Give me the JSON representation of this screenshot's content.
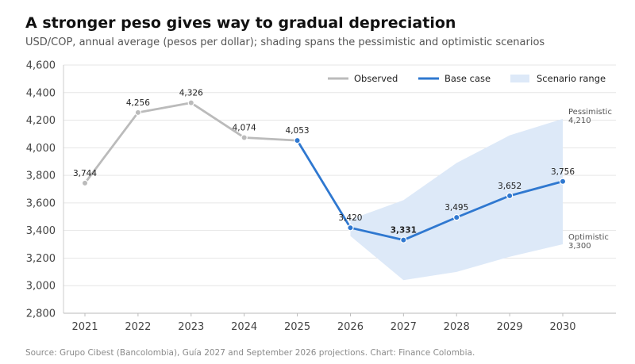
{
  "header": {
    "title": "A stronger peso gives way to gradual depreciation",
    "subtitle": "USD/COP, annual average (pesos per dollar); shading spans the pessimistic and optimistic scenarios"
  },
  "footer": {
    "source": "Source: Grupo Cibest (Bancolombia), Guía 2027 and September 2026 projections. Chart: Finance Colombia."
  },
  "chart_data": {
    "type": "line",
    "x": [
      2021,
      2022,
      2023,
      2024,
      2025,
      2026,
      2027,
      2028,
      2029,
      2030
    ],
    "ylim": [
      2800,
      4600
    ],
    "y_ticks": [
      2800,
      3000,
      3200,
      3400,
      3600,
      3800,
      4000,
      4200,
      4400,
      4600
    ],
    "y_tick_labels": [
      "2,800",
      "3,000",
      "3,200",
      "3,400",
      "3,600",
      "3,800",
      "4,000",
      "4,200",
      "4,400",
      "4,600"
    ],
    "x_tick_labels": [
      "2021",
      "2022",
      "2023",
      "2024",
      "2025",
      "2026",
      "2027",
      "2028",
      "2029",
      "2030"
    ],
    "grid": "horizontal",
    "legend_position": "top-right",
    "series": [
      {
        "name": "Observed",
        "color": "#bbbbbb",
        "x": [
          2021,
          2022,
          2023,
          2024,
          2025
        ],
        "values": [
          3744,
          4256,
          4326,
          4074,
          4053
        ],
        "labels": [
          "3,744",
          "4,256",
          "4,326",
          "4,074",
          "4,053"
        ]
      },
      {
        "name": "Base case",
        "color": "#2f78d0",
        "x": [
          2025,
          2026,
          2027,
          2028,
          2029,
          2030
        ],
        "values": [
          4053,
          3420,
          3331,
          3495,
          3652,
          3756
        ],
        "labels": [
          "",
          "3,420",
          "3,331",
          "3,495",
          "3,652",
          "3,756"
        ]
      }
    ],
    "band": {
      "name": "Scenario range",
      "color": "#dde9f8",
      "x": [
        2026,
        2027,
        2028,
        2029,
        2030
      ],
      "upper": [
        3480,
        3620,
        3890,
        4090,
        4210
      ],
      "lower": [
        3360,
        3040,
        3100,
        3210,
        3300
      ]
    },
    "annotations": [
      {
        "name": "Pessimistic",
        "value_label": "4,210",
        "x": 2030,
        "y": 4210
      },
      {
        "name": "Optimistic",
        "value_label": "3,300",
        "x": 2030,
        "y": 3300
      }
    ]
  }
}
